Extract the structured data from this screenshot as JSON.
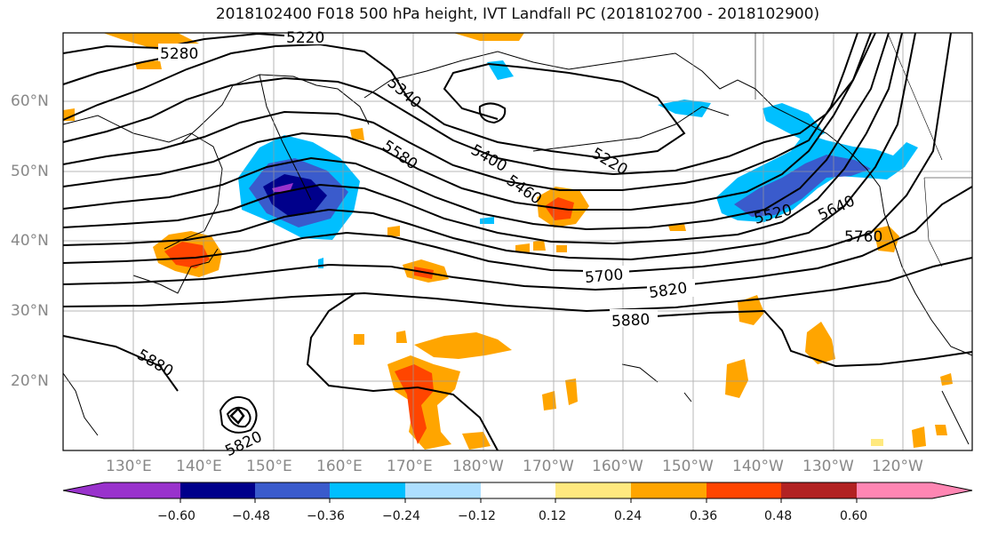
{
  "title": "2018102400 F018 500 hPa height, IVT Landfall PC (2018102700 - 2018102900)",
  "latitude_labels": [
    "60°N",
    "50°N",
    "40°N",
    "30°N",
    "20°N"
  ],
  "longitude_labels": [
    "130°E",
    "140°E",
    "150°E",
    "160°E",
    "170°E",
    "180°W",
    "170°W",
    "160°W",
    "150°W",
    "140°W",
    "130°W",
    "120°W"
  ],
  "contour_labels": [
    "5220",
    "5280",
    "5340",
    "5580",
    "5400",
    "5460",
    "5220",
    "5520",
    "5640",
    "5760",
    "5700",
    "5820",
    "5880",
    "5880",
    "5820"
  ],
  "colorbar": {
    "tick_labels": [
      "−0.60",
      "−0.48",
      "−0.36",
      "−0.24",
      "−0.12",
      "0.12",
      "0.24",
      "0.36",
      "0.48",
      "0.60"
    ],
    "colors": [
      "#9932CC",
      "#00008B",
      "#3A5BCC",
      "#00BFFF",
      "#ADDFFF",
      "#FFFFFF",
      "#FFE97F",
      "#FFA500",
      "#FF4500",
      "#B22222",
      "#FF86B3"
    ]
  }
}
